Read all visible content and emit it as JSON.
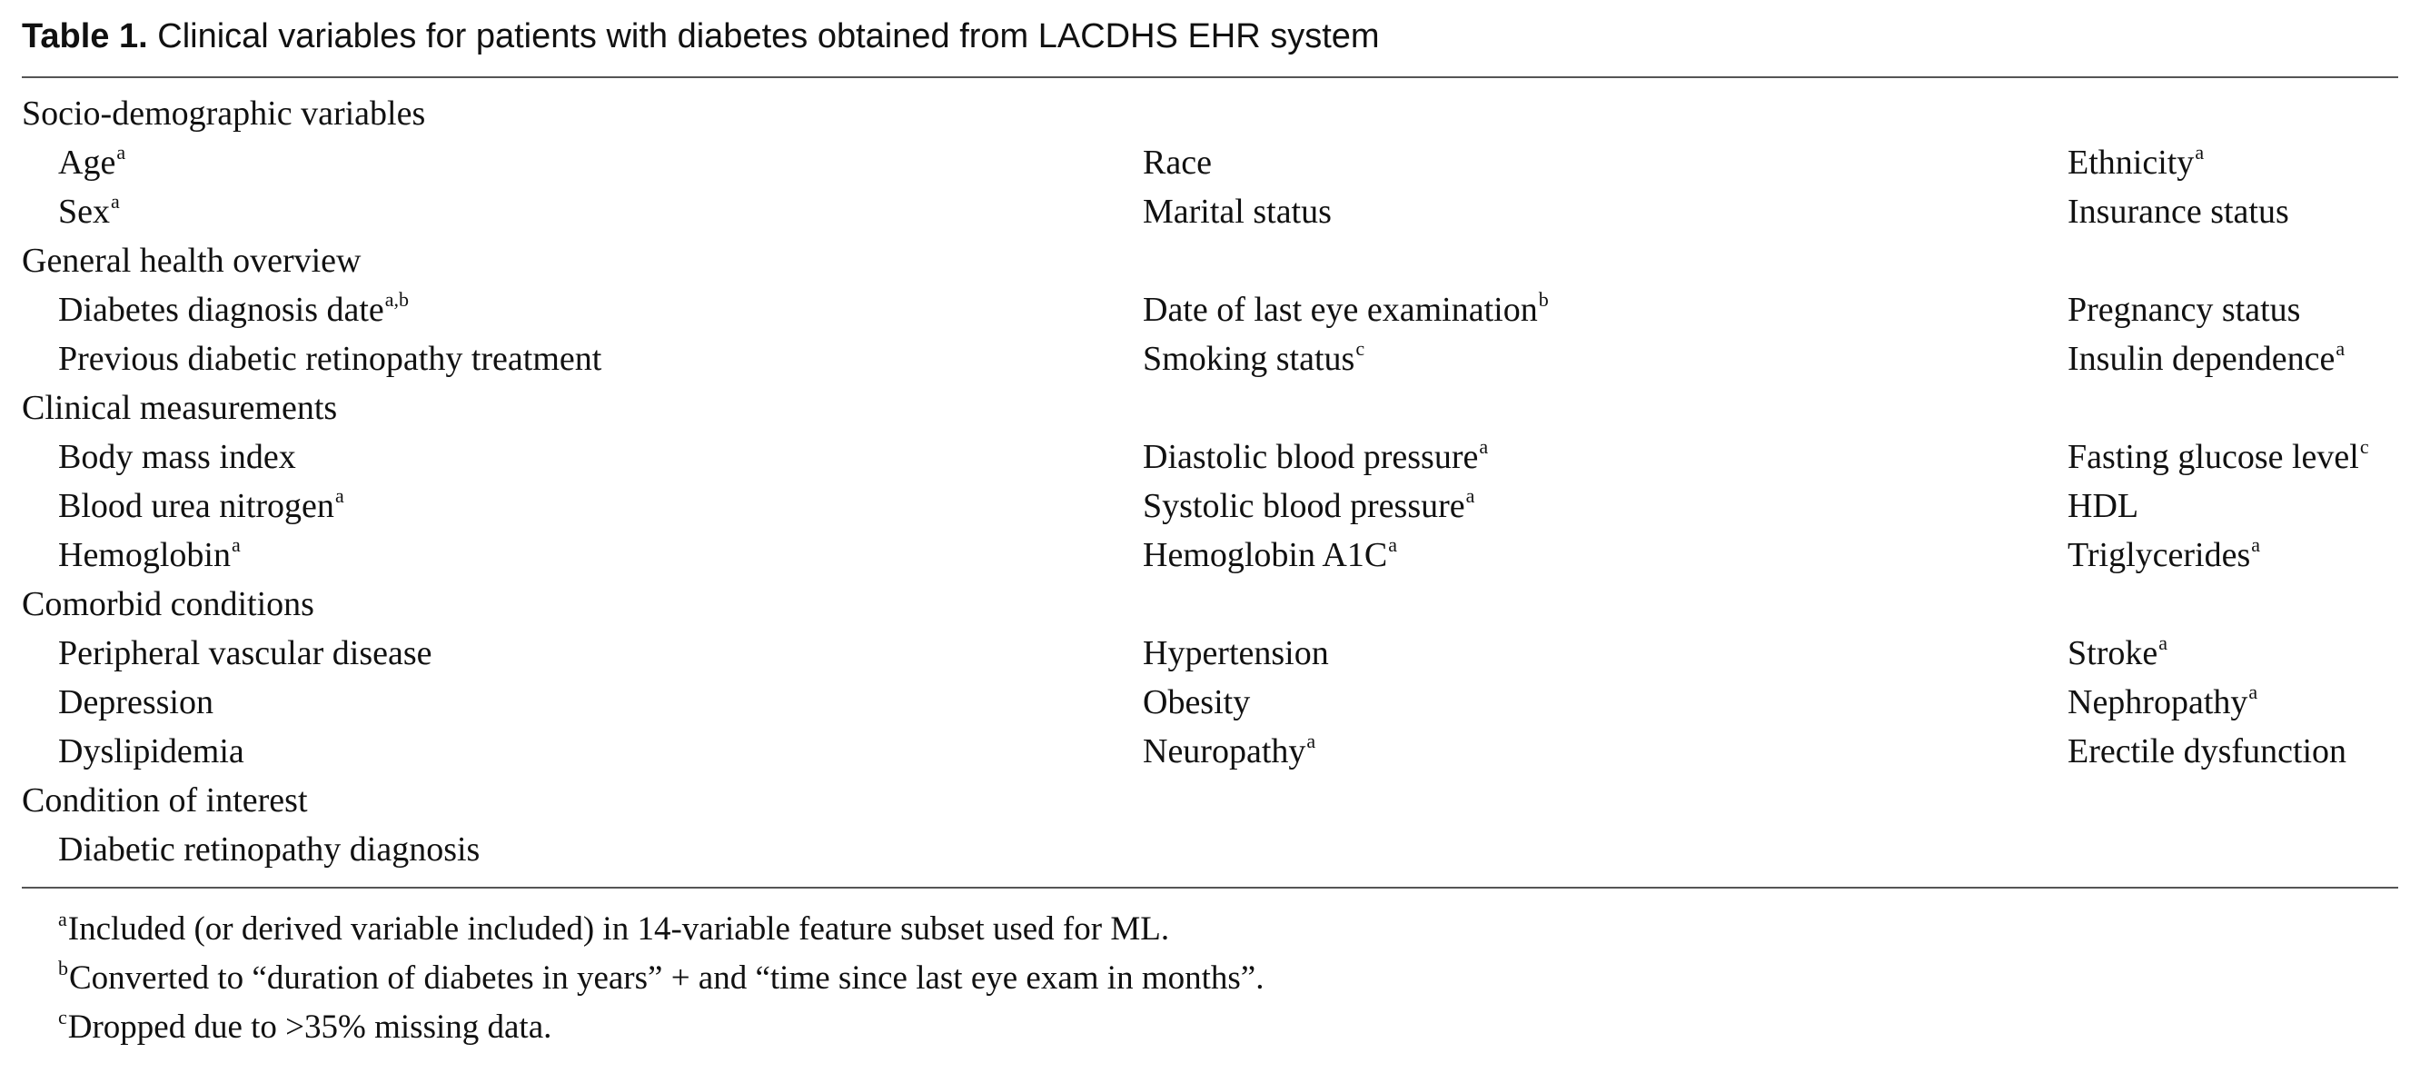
{
  "caption": {
    "label": "Table 1.",
    "text": " Clinical variables for patients with diabetes obtained from LACDHS EHR system"
  },
  "table": {
    "groups": [
      {
        "title": "Socio-demographic variables",
        "rows": [
          [
            {
              "text": "Age",
              "sup": "a"
            },
            {
              "text": "Race",
              "sup": ""
            },
            {
              "text": "Ethnicity",
              "sup": "a"
            }
          ],
          [
            {
              "text": "Sex",
              "sup": "a"
            },
            {
              "text": "Marital status",
              "sup": ""
            },
            {
              "text": "Insurance status",
              "sup": ""
            }
          ]
        ]
      },
      {
        "title": "General health overview",
        "rows": [
          [
            {
              "text": "Diabetes diagnosis date",
              "sup": "a,b"
            },
            {
              "text": "Date of last eye examination",
              "sup": "b"
            },
            {
              "text": "Pregnancy status",
              "sup": ""
            }
          ],
          [
            {
              "text": "Previous diabetic retinopathy treatment",
              "sup": ""
            },
            {
              "text": "Smoking status",
              "sup": "c"
            },
            {
              "text": "Insulin dependence",
              "sup": "a"
            }
          ]
        ]
      },
      {
        "title": "Clinical measurements",
        "rows": [
          [
            {
              "text": "Body mass index",
              "sup": ""
            },
            {
              "text": "Diastolic blood pressure",
              "sup": "a"
            },
            {
              "text": "Fasting glucose level",
              "sup": "c"
            }
          ],
          [
            {
              "text": "Blood urea nitrogen",
              "sup": "a"
            },
            {
              "text": "Systolic blood pressure",
              "sup": "a"
            },
            {
              "text": "HDL",
              "sup": ""
            }
          ],
          [
            {
              "text": "Hemoglobin",
              "sup": "a"
            },
            {
              "text": "Hemoglobin A1C",
              "sup": "a"
            },
            {
              "text": "Triglycerides",
              "sup": "a"
            }
          ]
        ]
      },
      {
        "title": "Comorbid conditions",
        "rows": [
          [
            {
              "text": "Peripheral vascular disease",
              "sup": ""
            },
            {
              "text": "Hypertension",
              "sup": ""
            },
            {
              "text": "Stroke",
              "sup": "a"
            }
          ],
          [
            {
              "text": "Depression",
              "sup": ""
            },
            {
              "text": "Obesity",
              "sup": ""
            },
            {
              "text": "Nephropathy",
              "sup": "a"
            }
          ],
          [
            {
              "text": "Dyslipidemia",
              "sup": ""
            },
            {
              "text": "Neuropathy",
              "sup": "a"
            },
            {
              "text": "Erectile dysfunction",
              "sup": ""
            }
          ]
        ]
      },
      {
        "title": "Condition of interest",
        "rows": [
          [
            {
              "text": "Diabetic retinopathy diagnosis",
              "sup": ""
            },
            {
              "text": "",
              "sup": ""
            },
            {
              "text": "",
              "sup": ""
            }
          ]
        ]
      }
    ]
  },
  "footnotes": [
    {
      "mark": "a",
      "text": "Included (or derived variable included) in 14-variable feature subset used for ML."
    },
    {
      "mark": "b",
      "text": "Converted to “duration of diabetes in years” + and “time since last eye exam in months”."
    },
    {
      "mark": "c",
      "text": "Dropped due to >35% missing data."
    }
  ]
}
